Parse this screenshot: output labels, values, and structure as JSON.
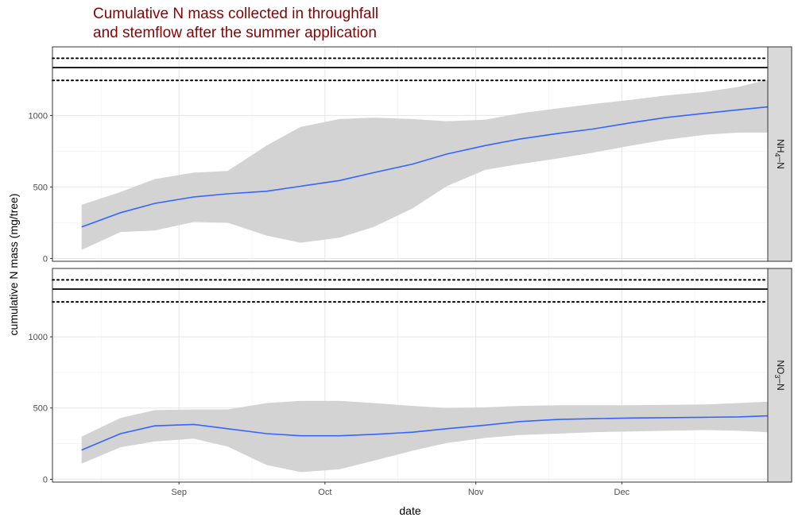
{
  "chart_data": {
    "type": "line",
    "title": "Cumulative N mass collected in throughfall\nand stemflow after the summer application",
    "xlabel": "date",
    "ylabel": "cumulative N mass (mg/tree)",
    "x_axis": {
      "type": "date",
      "range": [
        "2015-08-06",
        "2015-12-31"
      ],
      "ticks": [
        "Sep",
        "Oct",
        "Nov",
        "Dec"
      ]
    },
    "y_axis": {
      "range": [
        -20,
        1480
      ],
      "ticks": [
        0,
        500,
        1000
      ]
    },
    "grid": true,
    "colors": {
      "line": "#3366ff",
      "ribbon": "#d3d3d3",
      "strip": "#d9d9d9",
      "title": "#8b0000"
    },
    "panels": [
      {
        "label": "NH4-N",
        "label_main": "NH",
        "label_sub": "4",
        "label_tail": "–N",
        "hlines": [
          {
            "y": 1400,
            "style": "dotted"
          },
          {
            "y": 1335,
            "style": "solid"
          },
          {
            "y": 1245,
            "style": "dotted"
          }
        ],
        "series": [
          {
            "name": "fit",
            "points": [
              {
                "x": "2015-08-12",
                "y": 220,
                "lo": 60,
                "hi": 375
              },
              {
                "x": "2015-08-20",
                "y": 320,
                "lo": 185,
                "hi": 465
              },
              {
                "x": "2015-08-27",
                "y": 385,
                "lo": 195,
                "hi": 555
              },
              {
                "x": "2015-09-04",
                "y": 430,
                "lo": 255,
                "hi": 600
              },
              {
                "x": "2015-09-11",
                "y": 452,
                "lo": 250,
                "hi": 612
              },
              {
                "x": "2015-09-19",
                "y": 470,
                "lo": 160,
                "hi": 790
              },
              {
                "x": "2015-09-26",
                "y": 505,
                "lo": 110,
                "hi": 920
              },
              {
                "x": "2015-10-04",
                "y": 545,
                "lo": 145,
                "hi": 975
              },
              {
                "x": "2015-10-11",
                "y": 600,
                "lo": 220,
                "hi": 985
              },
              {
                "x": "2015-10-19",
                "y": 660,
                "lo": 350,
                "hi": 975
              },
              {
                "x": "2015-10-26",
                "y": 730,
                "lo": 505,
                "hi": 960
              },
              {
                "x": "2015-11-03",
                "y": 790,
                "lo": 620,
                "hi": 970
              },
              {
                "x": "2015-11-10",
                "y": 835,
                "lo": 660,
                "hi": 1015
              },
              {
                "x": "2015-11-18",
                "y": 875,
                "lo": 700,
                "hi": 1050
              },
              {
                "x": "2015-11-25",
                "y": 905,
                "lo": 740,
                "hi": 1080
              },
              {
                "x": "2015-12-03",
                "y": 950,
                "lo": 790,
                "hi": 1110
              },
              {
                "x": "2015-12-10",
                "y": 985,
                "lo": 830,
                "hi": 1140
              },
              {
                "x": "2015-12-18",
                "y": 1015,
                "lo": 865,
                "hi": 1165
              },
              {
                "x": "2015-12-25",
                "y": 1040,
                "lo": 880,
                "hi": 1200
              },
              {
                "x": "2015-12-31",
                "y": 1060,
                "lo": 880,
                "hi": 1250
              }
            ]
          }
        ]
      },
      {
        "label": "NO3-N",
        "label_main": "NO",
        "label_sub": "3",
        "label_tail": "–N",
        "hlines": [
          {
            "y": 1400,
            "style": "dotted"
          },
          {
            "y": 1335,
            "style": "solid"
          },
          {
            "y": 1245,
            "style": "dotted"
          }
        ],
        "series": [
          {
            "name": "fit",
            "points": [
              {
                "x": "2015-08-12",
                "y": 205,
                "lo": 110,
                "hi": 300
              },
              {
                "x": "2015-08-20",
                "y": 320,
                "lo": 225,
                "hi": 430
              },
              {
                "x": "2015-08-27",
                "y": 375,
                "lo": 265,
                "hi": 485
              },
              {
                "x": "2015-09-04",
                "y": 385,
                "lo": 285,
                "hi": 490
              },
              {
                "x": "2015-09-11",
                "y": 355,
                "lo": 230,
                "hi": 490
              },
              {
                "x": "2015-09-19",
                "y": 320,
                "lo": 100,
                "hi": 535
              },
              {
                "x": "2015-09-26",
                "y": 305,
                "lo": 50,
                "hi": 550
              },
              {
                "x": "2015-10-04",
                "y": 305,
                "lo": 70,
                "hi": 550
              },
              {
                "x": "2015-10-11",
                "y": 315,
                "lo": 130,
                "hi": 535
              },
              {
                "x": "2015-10-19",
                "y": 330,
                "lo": 200,
                "hi": 515
              },
              {
                "x": "2015-10-26",
                "y": 355,
                "lo": 255,
                "hi": 500
              },
              {
                "x": "2015-11-03",
                "y": 380,
                "lo": 290,
                "hi": 505
              },
              {
                "x": "2015-11-10",
                "y": 405,
                "lo": 310,
                "hi": 515
              },
              {
                "x": "2015-11-18",
                "y": 420,
                "lo": 320,
                "hi": 520
              },
              {
                "x": "2015-11-25",
                "y": 425,
                "lo": 330,
                "hi": 520
              },
              {
                "x": "2015-12-03",
                "y": 430,
                "lo": 335,
                "hi": 520
              },
              {
                "x": "2015-12-10",
                "y": 432,
                "lo": 340,
                "hi": 522
              },
              {
                "x": "2015-12-18",
                "y": 435,
                "lo": 345,
                "hi": 525
              },
              {
                "x": "2015-12-25",
                "y": 438,
                "lo": 340,
                "hi": 535
              },
              {
                "x": "2015-12-31",
                "y": 445,
                "lo": 330,
                "hi": 545
              }
            ]
          }
        ]
      }
    ]
  }
}
